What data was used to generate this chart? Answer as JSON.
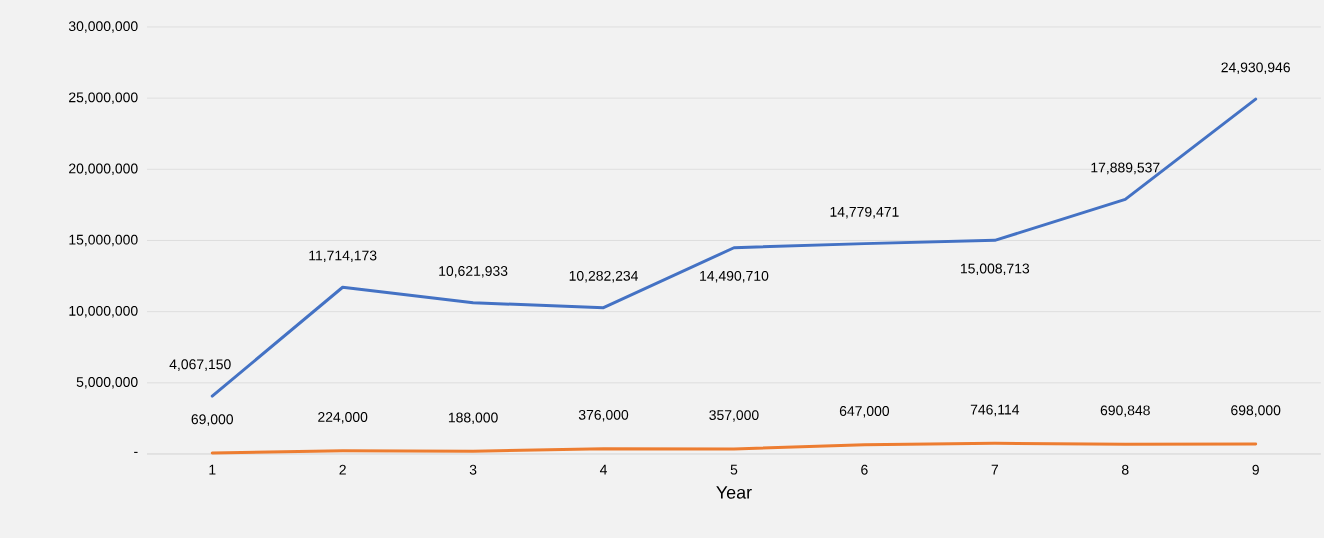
{
  "chart_data": {
    "type": "line",
    "xlabel": "Year",
    "categories": [
      "1",
      "2",
      "3",
      "4",
      "5",
      "6",
      "7",
      "8",
      "9"
    ],
    "series": [
      {
        "color": "#4472c4",
        "values": [
          4067150,
          11714173,
          10621933,
          10282234,
          14490710,
          14779471,
          15008713,
          17889537,
          24930946
        ],
        "value_labels": [
          "4,067,150",
          "11,714,173",
          "10,621,933",
          "10,282,234",
          "14,490,710",
          "14,779,471",
          "15,008,713",
          "17,889,537",
          "24,930,946"
        ]
      },
      {
        "color": "#ed7d31",
        "values": [
          69000,
          224000,
          188000,
          376000,
          357000,
          647000,
          746114,
          690848,
          698000
        ],
        "value_labels": [
          "69,000",
          "224,000",
          "188,000",
          "376,000",
          "357,000",
          "647,000",
          "746,114",
          "690,848",
          "698,000"
        ]
      }
    ],
    "ylim": [
      0,
      30000000
    ],
    "yticks": [
      {
        "value": 0,
        "label": "-"
      },
      {
        "value": 5000000,
        "label": "5,000,000"
      },
      {
        "value": 10000000,
        "label": "10,000,000"
      },
      {
        "value": 15000000,
        "label": "15,000,000"
      },
      {
        "value": 20000000,
        "label": "20,000,000"
      },
      {
        "value": 25000000,
        "label": "25,000,000"
      },
      {
        "value": 30000000,
        "label": "30,000,000"
      }
    ],
    "grid": "y"
  }
}
